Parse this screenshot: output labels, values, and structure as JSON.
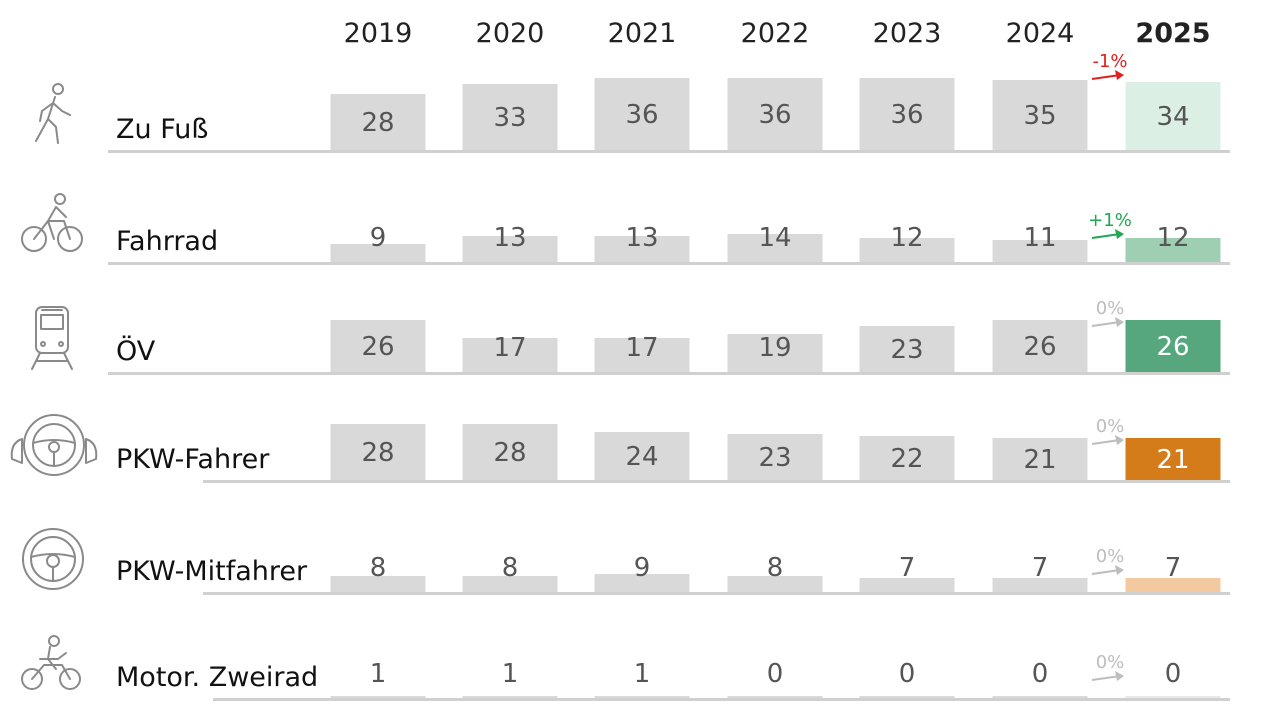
{
  "chart_data": {
    "type": "bar",
    "categories": [
      "2019",
      "2020",
      "2021",
      "2022",
      "2023",
      "2024",
      "2025"
    ],
    "series": [
      {
        "name": "Zu Fuß",
        "icon": "walking-person-icon",
        "values": [
          28,
          33,
          36,
          36,
          36,
          35,
          34
        ],
        "change": "-1%",
        "change_color": "#e02020",
        "highlight_color": "#dcefe4"
      },
      {
        "name": "Fahrrad",
        "icon": "cyclist-icon",
        "values": [
          9,
          13,
          13,
          14,
          12,
          11,
          12
        ],
        "change": "+1%",
        "change_color": "#1fa84f",
        "highlight_color": "#9fcfb2"
      },
      {
        "name": "ÖV",
        "icon": "train-icon",
        "values": [
          26,
          17,
          17,
          19,
          23,
          26,
          26
        ],
        "change": "0%",
        "change_color": "#bdbdbd",
        "highlight_color": "#56a77e"
      },
      {
        "name": "PKW-Fahrer",
        "icon": "steering-wheel-hands-icon",
        "values": [
          28,
          28,
          24,
          23,
          22,
          21,
          21
        ],
        "change": "0%",
        "change_color": "#bdbdbd",
        "highlight_color": "#d47b1a"
      },
      {
        "name": "PKW-Mitfahrer",
        "icon": "steering-wheel-icon",
        "values": [
          8,
          8,
          9,
          8,
          7,
          7,
          7
        ],
        "change": "0%",
        "change_color": "#bdbdbd",
        "highlight_color": "#f3c9a0"
      },
      {
        "name": "Motor. Zweirad",
        "icon": "motorcycle-icon",
        "values": [
          1,
          1,
          1,
          0,
          0,
          0,
          0
        ],
        "change": "0%",
        "change_color": "#bdbdbd",
        "highlight_color": "#e8e8e8"
      }
    ],
    "colors": {
      "base_bar": "#d9d9d9",
      "baseline": "#d0d0d0",
      "last_value_on_dark": "#ffffff"
    }
  }
}
